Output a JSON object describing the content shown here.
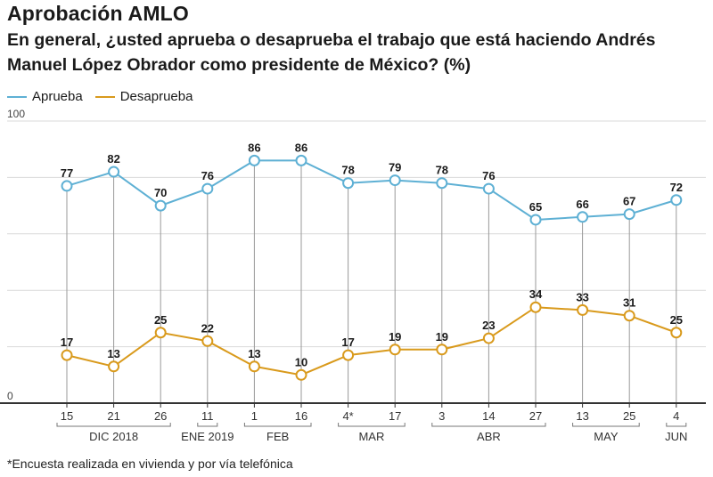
{
  "title": "Aprobación AMLO",
  "subtitle": "En general, ¿usted aprueba o desaprueba el trabajo que está haciendo Andrés Manuel López Obrador como presidente de México?  (%)",
  "footnote": "*Encuesta realizada en vivienda y por vía telefónica",
  "colors": {
    "aprueba": "#5eb0d4",
    "desaprueba": "#d99a1c",
    "grid": "#d9d9d9",
    "axis": "#333333",
    "drop": "#999999"
  },
  "chart_data": {
    "type": "line",
    "ylim": [
      0,
      100
    ],
    "yticks": [
      0,
      100
    ],
    "grid": true,
    "legend_position": "top-left",
    "x": [
      "15",
      "21",
      "26",
      "11",
      "1",
      "16",
      "4*",
      "17",
      "3",
      "14",
      "27",
      "13",
      "25",
      "4"
    ],
    "month_groups": [
      {
        "label": "DIC 2018",
        "start": 0,
        "end": 2
      },
      {
        "label": "ENE 2019",
        "start": 3,
        "end": 3
      },
      {
        "label": "FEB",
        "start": 4,
        "end": 5
      },
      {
        "label": "MAR",
        "start": 6,
        "end": 7
      },
      {
        "label": "ABR",
        "start": 8,
        "end": 10
      },
      {
        "label": "MAY",
        "start": 11,
        "end": 12
      },
      {
        "label": "JUN",
        "start": 13,
        "end": 13
      }
    ],
    "series": [
      {
        "name": "Aprueba",
        "values": [
          77,
          82,
          70,
          76,
          86,
          86,
          78,
          79,
          78,
          76,
          65,
          66,
          67,
          72
        ]
      },
      {
        "name": "Desaprueba",
        "values": [
          17,
          13,
          25,
          22,
          13,
          10,
          17,
          19,
          19,
          23,
          34,
          33,
          31,
          25
        ]
      }
    ]
  }
}
